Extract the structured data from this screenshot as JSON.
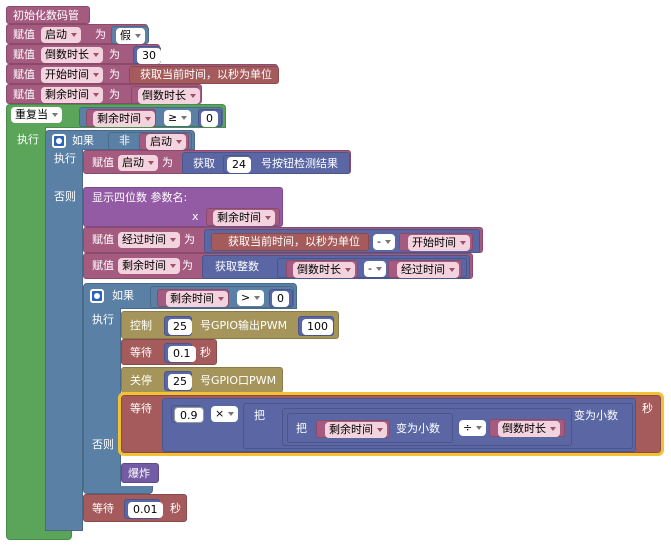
{
  "blocks": {
    "init": "初始化数码管",
    "set_label": "赋值",
    "to_label": "为",
    "var_start": "启动",
    "val_false": "假",
    "var_duration": "倒数时长",
    "val_30": "30",
    "var_begin": "开始时间",
    "get_time": "获取当前时间，以秒为单位",
    "var_remain": "剩余时间",
    "repeat_while": "重复当",
    "op_ge": "≥",
    "val_0": "0",
    "do_label": "执行",
    "if_label": "如果",
    "not_label": "非",
    "get_label": "获取",
    "val_24": "24",
    "button_result": "号按钮检测结果",
    "else_label": "否则",
    "show4": "显示四位数  参数名:",
    "x_label": "x",
    "var_elapsed": "经过时间",
    "op_minus": "-",
    "get_int": "获取整数",
    "op_gt": ">",
    "ctrl_label": "控制",
    "val_25": "25",
    "pwm_out": "号GPIO输出PWM",
    "val_100": "100",
    "wait_label": "等待",
    "val_01": "0.1",
    "sec_label": "秒",
    "off_label": "关停",
    "pwm_off": "号GPIO口PWM",
    "val_09": "0.9",
    "op_times": "×",
    "ba_label": "把",
    "to_decimal": "变为小数",
    "op_div": "÷",
    "explode": "爆炸",
    "val_001": "0.01"
  }
}
